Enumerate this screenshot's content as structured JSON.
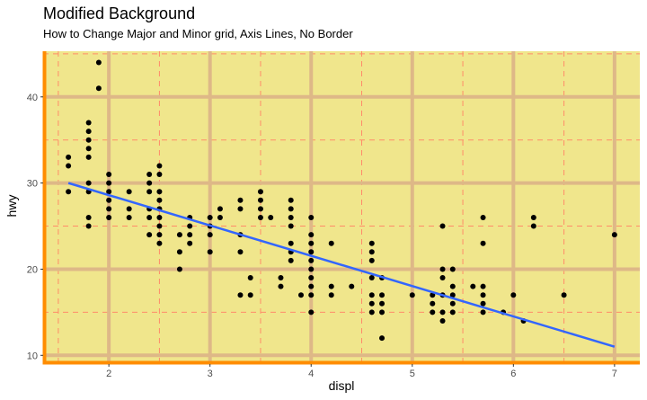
{
  "chart_data": {
    "type": "scatter",
    "title": "Modified Background",
    "subtitle": "How to Change Major and Minor grid, Axis Lines, No Border",
    "xlabel": "displ",
    "ylabel": "hwy",
    "xlim": [
      1.35,
      7.25
    ],
    "ylim": [
      9.3,
      45.3
    ],
    "x_ticks": [
      2,
      3,
      4,
      5,
      6,
      7
    ],
    "x_tick_labels": [
      "2",
      "3",
      "4",
      "5",
      "6",
      "7"
    ],
    "y_ticks": [
      10,
      20,
      30,
      40
    ],
    "y_tick_labels": [
      "10",
      "20",
      "30",
      "40"
    ],
    "x_minor_ticks": [
      1.5,
      2.5,
      3.5,
      4.5,
      5.5,
      6.5
    ],
    "y_minor_ticks": [
      15,
      25,
      35,
      45
    ],
    "grid": true,
    "legend": "none",
    "colors": {
      "panel_background": "#f0e68c",
      "major_grid": "#deb887",
      "minor_grid": "#ff8c69",
      "axis_line": "#ff8c00",
      "points": "#000000",
      "trend_line": "#3366ff"
    },
    "trend_line": {
      "type": "linear",
      "x": [
        1.6,
        7.0
      ],
      "y": [
        30.0,
        11.0
      ]
    },
    "points": [
      [
        1.6,
        33
      ],
      [
        1.6,
        32
      ],
      [
        1.6,
        29
      ],
      [
        1.8,
        37
      ],
      [
        1.8,
        36
      ],
      [
        1.8,
        35
      ],
      [
        1.8,
        34
      ],
      [
        1.8,
        33
      ],
      [
        1.8,
        30
      ],
      [
        1.8,
        29
      ],
      [
        1.8,
        26
      ],
      [
        1.8,
        25
      ],
      [
        1.9,
        44
      ],
      [
        1.9,
        41
      ],
      [
        2.0,
        31
      ],
      [
        2.0,
        30
      ],
      [
        2.0,
        29
      ],
      [
        2.0,
        28
      ],
      [
        2.0,
        27
      ],
      [
        2.0,
        26
      ],
      [
        2.2,
        29
      ],
      [
        2.2,
        27
      ],
      [
        2.2,
        26
      ],
      [
        2.4,
        31
      ],
      [
        2.4,
        30
      ],
      [
        2.4,
        29
      ],
      [
        2.4,
        27
      ],
      [
        2.4,
        26
      ],
      [
        2.4,
        24
      ],
      [
        2.5,
        32
      ],
      [
        2.5,
        31
      ],
      [
        2.5,
        29
      ],
      [
        2.5,
        28
      ],
      [
        2.5,
        27
      ],
      [
        2.5,
        26
      ],
      [
        2.5,
        25
      ],
      [
        2.5,
        24
      ],
      [
        2.5,
        23
      ],
      [
        2.7,
        24
      ],
      [
        2.7,
        22
      ],
      [
        2.7,
        20
      ],
      [
        2.8,
        26
      ],
      [
        2.8,
        25
      ],
      [
        2.8,
        24
      ],
      [
        2.8,
        23
      ],
      [
        3.0,
        26
      ],
      [
        3.0,
        25
      ],
      [
        3.0,
        24
      ],
      [
        3.0,
        22
      ],
      [
        3.1,
        27
      ],
      [
        3.1,
        26
      ],
      [
        3.3,
        28
      ],
      [
        3.3,
        27
      ],
      [
        3.3,
        24
      ],
      [
        3.3,
        22
      ],
      [
        3.3,
        17
      ],
      [
        3.4,
        19
      ],
      [
        3.4,
        17
      ],
      [
        3.5,
        29
      ],
      [
        3.5,
        28
      ],
      [
        3.5,
        27
      ],
      [
        3.5,
        26
      ],
      [
        3.6,
        26
      ],
      [
        3.7,
        19
      ],
      [
        3.7,
        18
      ],
      [
        3.8,
        28
      ],
      [
        3.8,
        27
      ],
      [
        3.8,
        26
      ],
      [
        3.8,
        25
      ],
      [
        3.8,
        23
      ],
      [
        3.8,
        22
      ],
      [
        3.8,
        21
      ],
      [
        3.9,
        17
      ],
      [
        4.0,
        26
      ],
      [
        4.0,
        24
      ],
      [
        4.0,
        23
      ],
      [
        4.0,
        22
      ],
      [
        4.0,
        21
      ],
      [
        4.0,
        20
      ],
      [
        4.0,
        19
      ],
      [
        4.0,
        18
      ],
      [
        4.0,
        17
      ],
      [
        4.0,
        15
      ],
      [
        4.2,
        23
      ],
      [
        4.2,
        18
      ],
      [
        4.2,
        17
      ],
      [
        4.4,
        18
      ],
      [
        4.6,
        23
      ],
      [
        4.6,
        22
      ],
      [
        4.6,
        21
      ],
      [
        4.6,
        19
      ],
      [
        4.6,
        17
      ],
      [
        4.6,
        16
      ],
      [
        4.6,
        15
      ],
      [
        4.7,
        19
      ],
      [
        4.7,
        17
      ],
      [
        4.7,
        16
      ],
      [
        4.7,
        15
      ],
      [
        4.7,
        12
      ],
      [
        5.0,
        17
      ],
      [
        5.2,
        17
      ],
      [
        5.2,
        16
      ],
      [
        5.2,
        15
      ],
      [
        5.3,
        25
      ],
      [
        5.3,
        20
      ],
      [
        5.3,
        19
      ],
      [
        5.3,
        17
      ],
      [
        5.3,
        15
      ],
      [
        5.3,
        14
      ],
      [
        5.4,
        20
      ],
      [
        5.4,
        18
      ],
      [
        5.4,
        17
      ],
      [
        5.4,
        16
      ],
      [
        5.4,
        15
      ],
      [
        5.6,
        18
      ],
      [
        5.7,
        26
      ],
      [
        5.7,
        23
      ],
      [
        5.7,
        18
      ],
      [
        5.7,
        17
      ],
      [
        5.7,
        16
      ],
      [
        5.7,
        15
      ],
      [
        5.9,
        15
      ],
      [
        6.0,
        17
      ],
      [
        6.1,
        14
      ],
      [
        6.2,
        26
      ],
      [
        6.2,
        25
      ],
      [
        6.5,
        17
      ],
      [
        7.0,
        24
      ]
    ]
  }
}
